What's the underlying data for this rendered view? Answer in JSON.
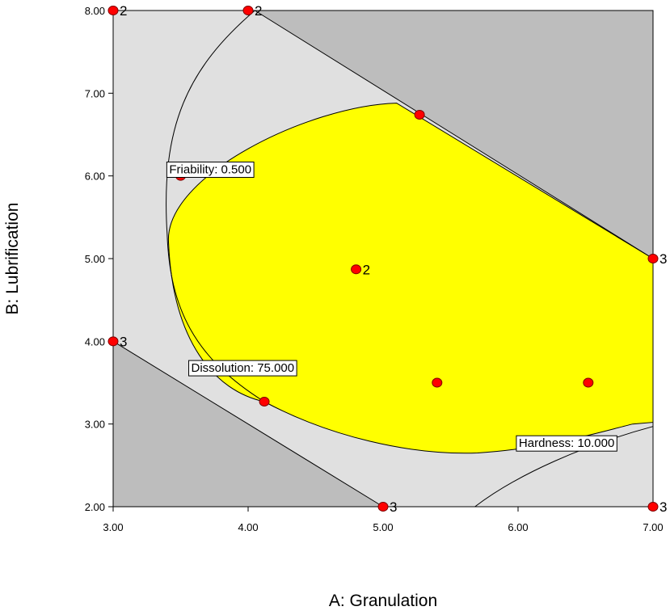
{
  "chart_data": {
    "type": "overlay-contour",
    "xlabel": "A: Granulation",
    "ylabel": "B: Lubrification",
    "xlim": [
      3,
      7
    ],
    "ylim": [
      2,
      8
    ],
    "xticks": [
      "3.00",
      "4.00",
      "5.00",
      "6.00",
      "7.00"
    ],
    "yticks": [
      "2.00",
      "3.00",
      "4.00",
      "5.00",
      "6.00",
      "7.00",
      "8.00"
    ],
    "design_points": [
      {
        "x": 3.0,
        "y": 8.0,
        "reps": "2"
      },
      {
        "x": 4.0,
        "y": 8.0,
        "reps": "2"
      },
      {
        "x": 5.27,
        "y": 6.74,
        "reps": ""
      },
      {
        "x": 3.5,
        "y": 6.0,
        "reps": ""
      },
      {
        "x": 7.0,
        "y": 5.0,
        "reps": "3"
      },
      {
        "x": 4.8,
        "y": 4.87,
        "reps": "2"
      },
      {
        "x": 3.0,
        "y": 4.0,
        "reps": "3"
      },
      {
        "x": 5.4,
        "y": 3.5,
        "reps": ""
      },
      {
        "x": 6.52,
        "y": 3.5,
        "reps": ""
      },
      {
        "x": 4.12,
        "y": 3.27,
        "reps": ""
      },
      {
        "x": 5.0,
        "y": 2.0,
        "reps": "3"
      },
      {
        "x": 7.0,
        "y": 2.0,
        "reps": "3"
      }
    ],
    "contours": [
      {
        "label": "Friability: 0.500",
        "label_at": {
          "x": 3.72,
          "y": 6.08
        }
      },
      {
        "label": "Dissolution: 75.000",
        "label_at": {
          "x": 3.96,
          "y": 3.68
        }
      },
      {
        "label": "Hardness: 10.000",
        "label_at": {
          "x": 6.36,
          "y": 2.77
        }
      }
    ],
    "colors": {
      "feasible": "#ffff00",
      "constrained": "#e0e0e0",
      "infeasible": "#bdbdbd",
      "point_fill": "#ff0000",
      "point_stroke": "#800000"
    }
  }
}
